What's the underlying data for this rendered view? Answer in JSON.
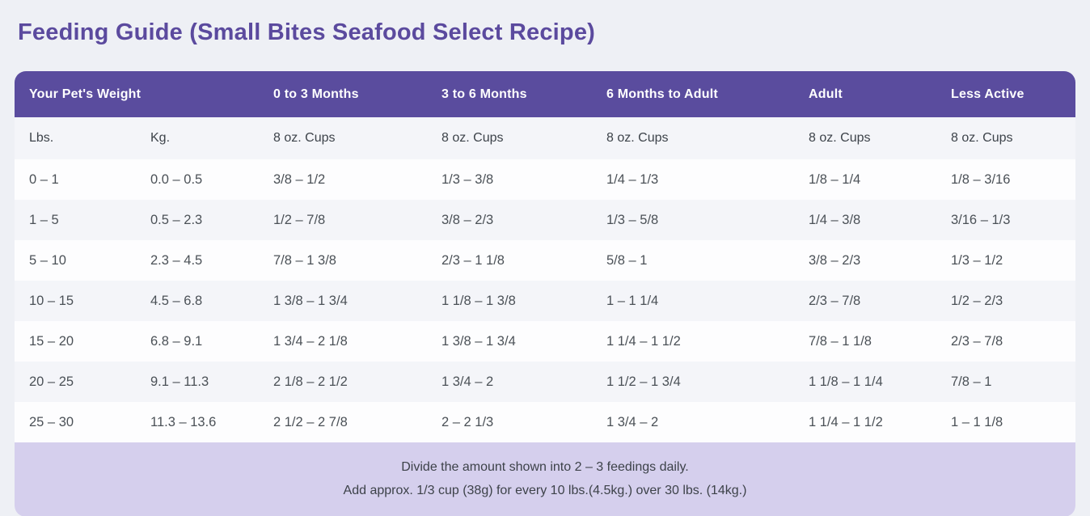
{
  "page": {
    "title": "Feeding Guide (Small Bites Seafood Select Recipe)"
  },
  "chart_data": {
    "type": "table",
    "title": "Feeding Guide (Small Bites Seafood Select Recipe)",
    "header_row": [
      {
        "label": "Your Pet's Weight",
        "colspan": 2
      },
      {
        "label": "0 to 3 Months",
        "colspan": 1
      },
      {
        "label": "3 to 6 Months",
        "colspan": 1
      },
      {
        "label": "6 Months to Adult",
        "colspan": 1
      },
      {
        "label": "Adult",
        "colspan": 1
      },
      {
        "label": "Less Active",
        "colspan": 1
      }
    ],
    "unit_row": [
      "Lbs.",
      "Kg.",
      "8 oz. Cups",
      "8 oz. Cups",
      "8 oz. Cups",
      "8 oz. Cups",
      "8 oz. Cups"
    ],
    "rows": [
      [
        "0 – 1",
        "0.0 – 0.5",
        "3/8 – 1/2",
        "1/3 – 3/8",
        "1/4 – 1/3",
        "1/8 – 1/4",
        "1/8 – 3/16"
      ],
      [
        "1 – 5",
        "0.5 – 2.3",
        "1/2 – 7/8",
        "3/8 – 2/3",
        "1/3 – 5/8",
        "1/4 – 3/8",
        "3/16 – 1/3"
      ],
      [
        "5 – 10",
        "2.3 – 4.5",
        "7/8 – 1 3/8",
        "2/3 – 1 1/8",
        "5/8 – 1",
        "3/8 – 2/3",
        "1/3 – 1/2"
      ],
      [
        "10 – 15",
        "4.5 – 6.8",
        "1 3/8 – 1 3/4",
        "1 1/8 – 1 3/8",
        "1 – 1 1/4",
        "2/3 – 7/8",
        "1/2 – 2/3"
      ],
      [
        "15 – 20",
        "6.8 – 9.1",
        "1 3/4 – 2 1/8",
        "1 3/8 – 1 3/4",
        "1 1/4 – 1 1/2",
        "7/8 – 1 1/8",
        "2/3 – 7/8"
      ],
      [
        "20 – 25",
        "9.1 – 11.3",
        "2 1/8 – 2 1/2",
        "1 3/4 – 2",
        "1 1/2 – 1 3/4",
        "1 1/8 – 1 1/4",
        "7/8 – 1"
      ],
      [
        "25 – 30",
        "11.3 – 13.6",
        "2 1/2 – 2 7/8",
        "2 – 2 1/3",
        "1 3/4 – 2",
        "1 1/4 – 1 1/2",
        "1 – 1 1/8"
      ]
    ],
    "footnotes": [
      "Divide the amount shown into 2 – 3 feedings daily.",
      "Add approx. 1/3 cup (38g) for every 10 lbs.(4.5kg.) over 30 lbs. (14kg.)"
    ],
    "layout": {
      "stripe_rows": "alternating",
      "header_position": "top"
    }
  },
  "colors": {
    "page_background": "#eef0f5",
    "title_text": "#5b4a9e",
    "header_background": "#5a4c9e",
    "header_text": "#ffffff",
    "stripe_row_background": "#f4f5f9",
    "white_row_background": "#fdfdfe",
    "footer_background": "#d5cfed",
    "body_text": "#4b5157"
  }
}
